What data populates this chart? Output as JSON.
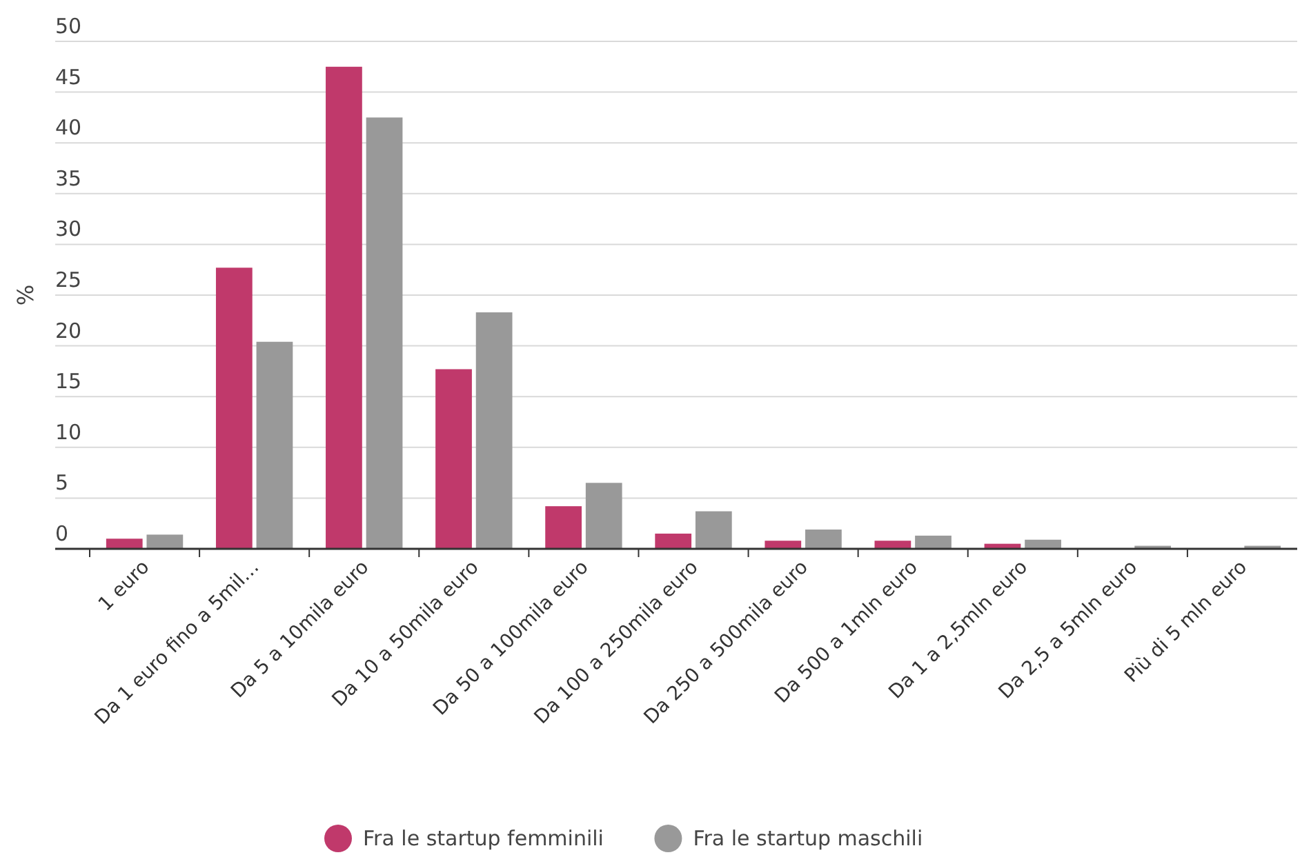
{
  "chart_data": {
    "type": "bar",
    "ylabel": "%",
    "categories": [
      "1 euro",
      "Da 1 euro fino a 5mil…",
      "Da 5 a 10mila euro",
      "Da 10 a 50mila euro",
      "Da 50 a 100mila euro",
      "Da 100 a 250mila euro",
      "Da 250 a 500mila euro",
      "Da 500 a 1mln euro",
      "Da 1 a 2,5mln euro",
      "Da 2,5 a 5mln euro",
      "Più di 5 mln euro"
    ],
    "series": [
      {
        "name": "Fra le startup femminili",
        "color": "#c0396b",
        "values": [
          1,
          27.7,
          47.5,
          17.7,
          4.2,
          1.5,
          0.8,
          0.8,
          0.5,
          0,
          0
        ]
      },
      {
        "name": "Fra le startup maschili",
        "color": "#999999",
        "values": [
          1.4,
          20.4,
          42.5,
          23.3,
          6.5,
          3.7,
          1.9,
          1.3,
          0.9,
          0.3,
          0.3
        ]
      }
    ],
    "ylim": [
      0,
      50
    ],
    "yticks": [
      0,
      5,
      10,
      15,
      20,
      25,
      30,
      35,
      40,
      45,
      50
    ],
    "grid": "y",
    "legend": "bottom"
  }
}
